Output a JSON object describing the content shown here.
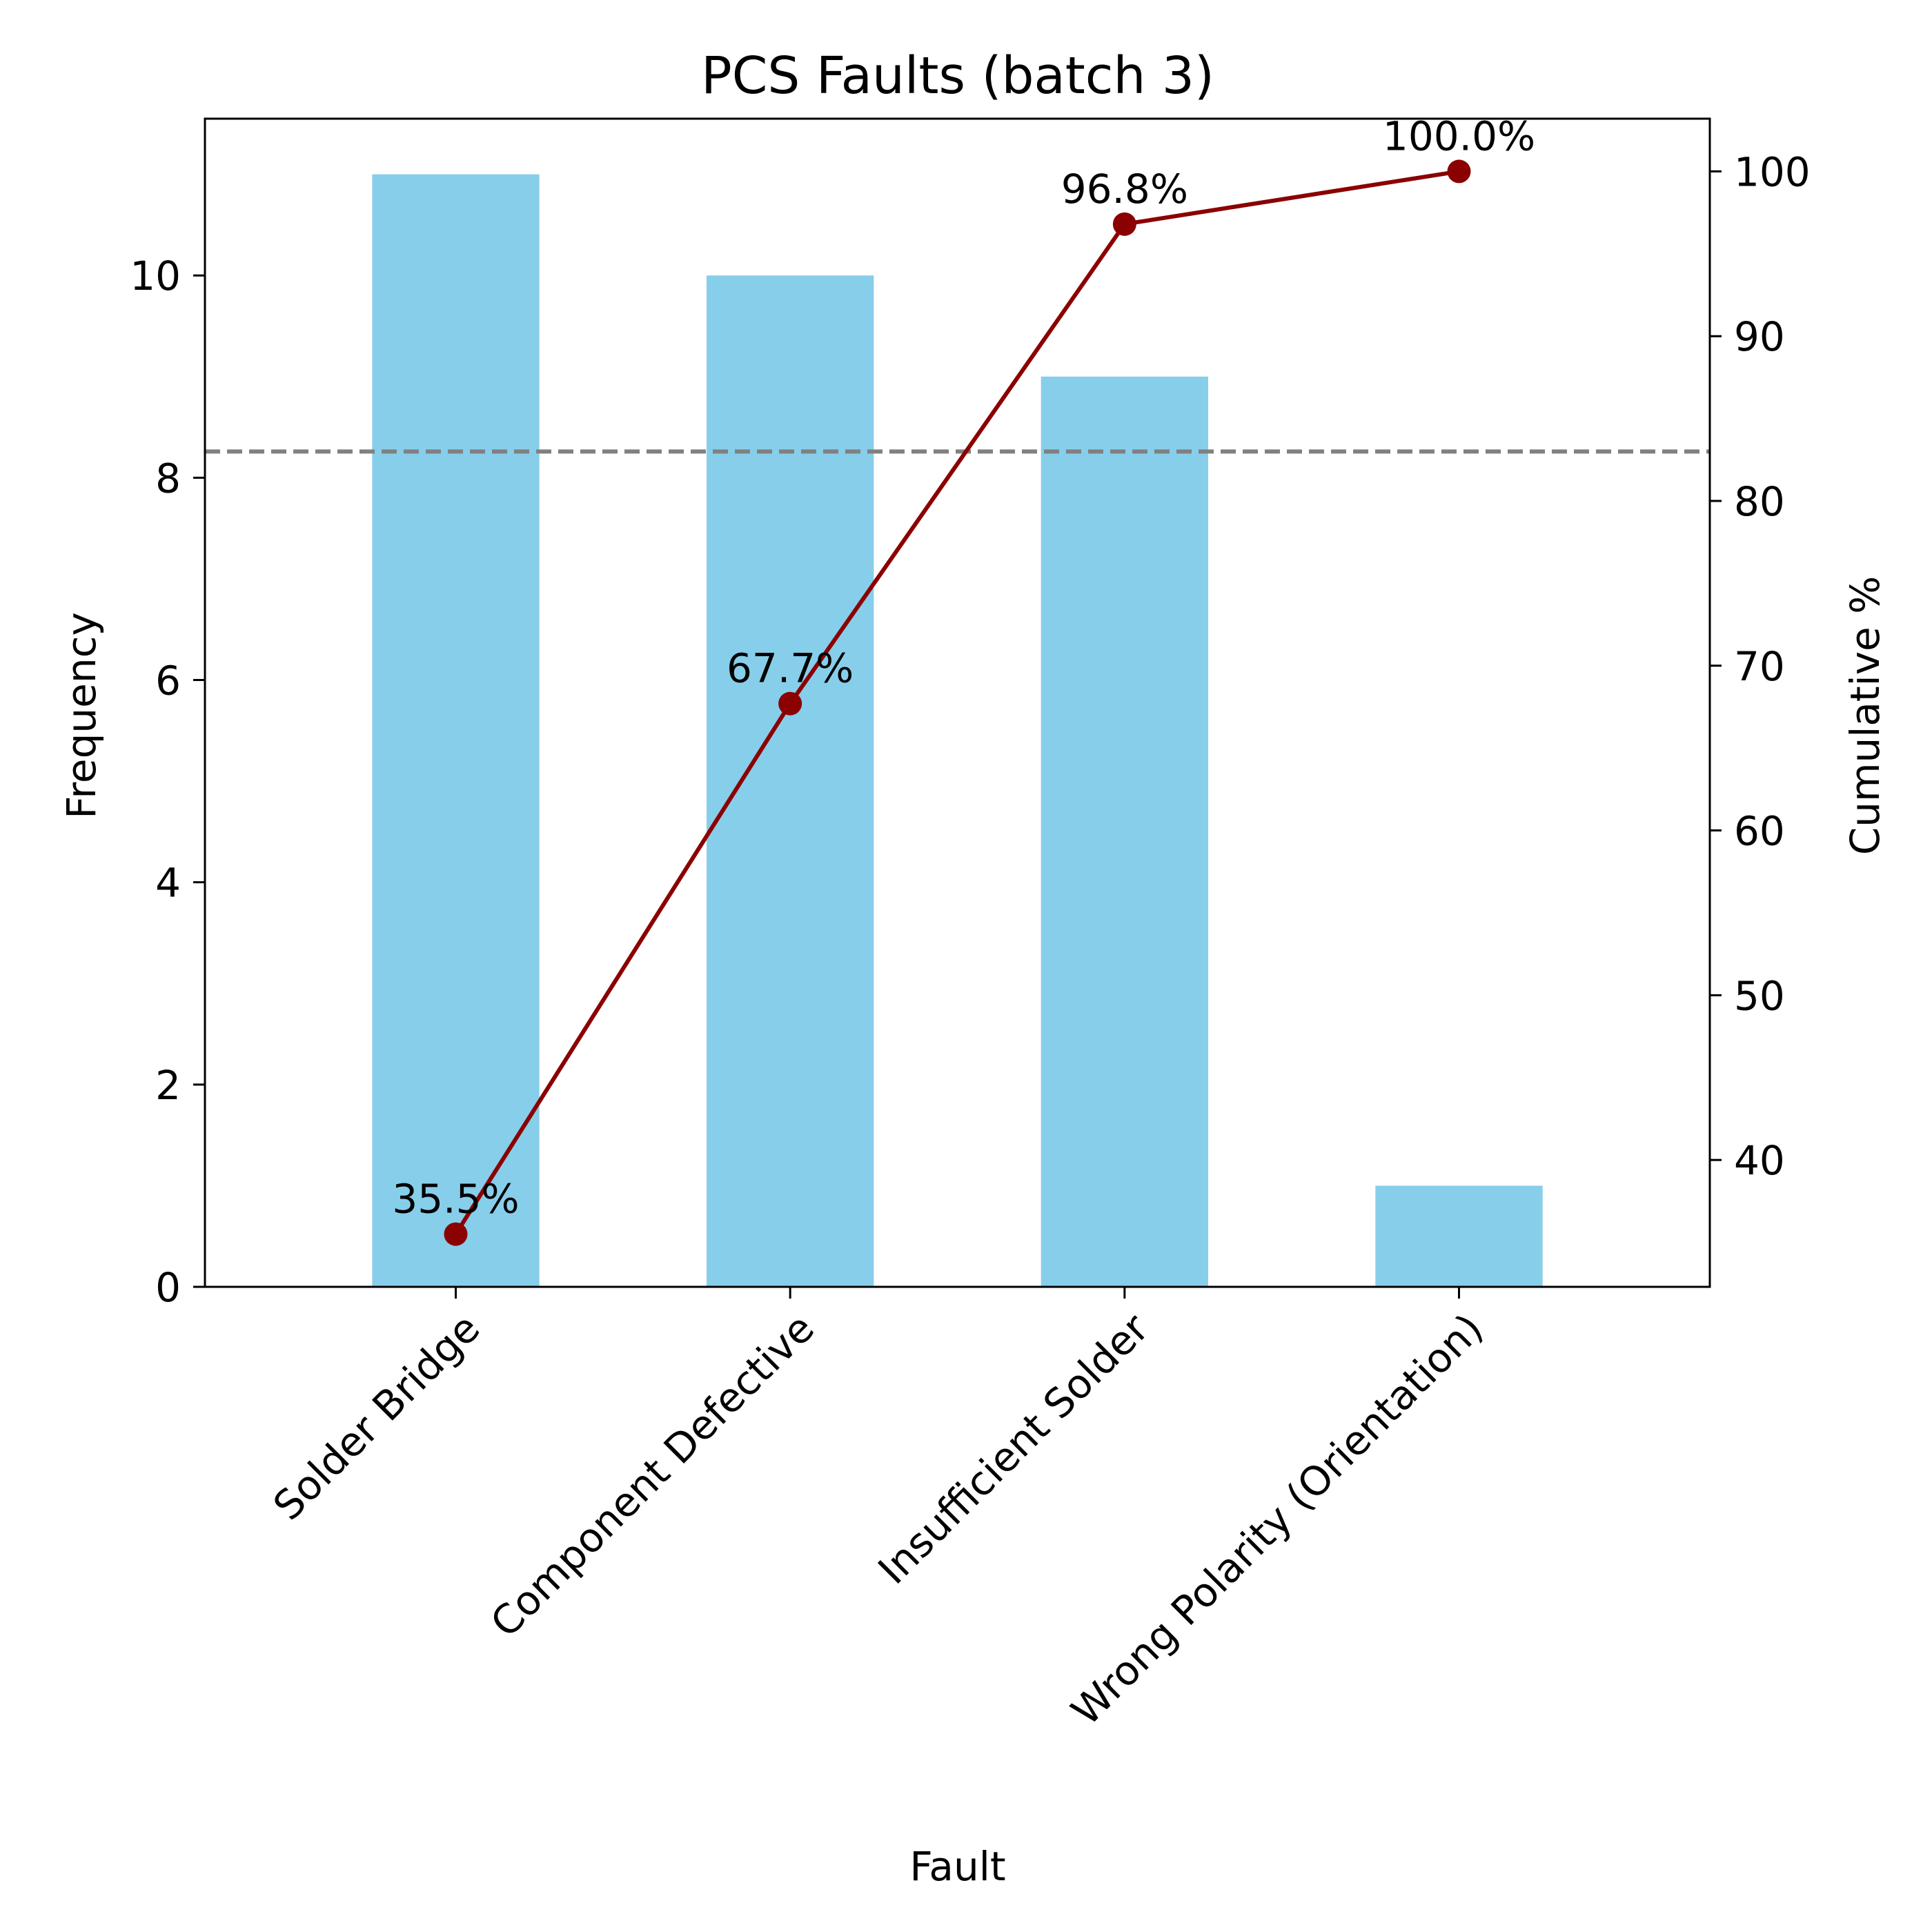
{
  "chart_data": {
    "type": "bar",
    "title": "PCS Faults (batch 3)",
    "xlabel": "Fault",
    "ylabel": "Frequency",
    "y2label": "Cumulative %",
    "categories": [
      "Solder Bridge",
      "Component Defective",
      "Insufficient Solder",
      "Wrong Polarity (Orientation)"
    ],
    "series": [
      {
        "type": "bar",
        "axis": "left",
        "values": [
          11,
          10,
          9,
          1
        ]
      },
      {
        "type": "line",
        "axis": "right",
        "values": [
          35.5,
          67.7,
          96.8,
          100.0
        ]
      }
    ],
    "cumulative_labels": [
      "35.5%",
      "67.7%",
      "96.8%",
      "100.0%"
    ],
    "threshold_line": {
      "axis": "right",
      "value": 83,
      "style": "dashed"
    },
    "ylim": [
      0,
      11.55
    ],
    "y2lim": [
      32.3,
      103.2
    ],
    "yticks": [
      0,
      2,
      4,
      6,
      8,
      10
    ],
    "y2ticks": [
      40,
      50,
      60,
      70,
      80,
      90,
      100
    ],
    "grid": false,
    "colors": {
      "bar": "#87ceeb",
      "line": "#8b0000",
      "threshold": "#808080"
    }
  }
}
